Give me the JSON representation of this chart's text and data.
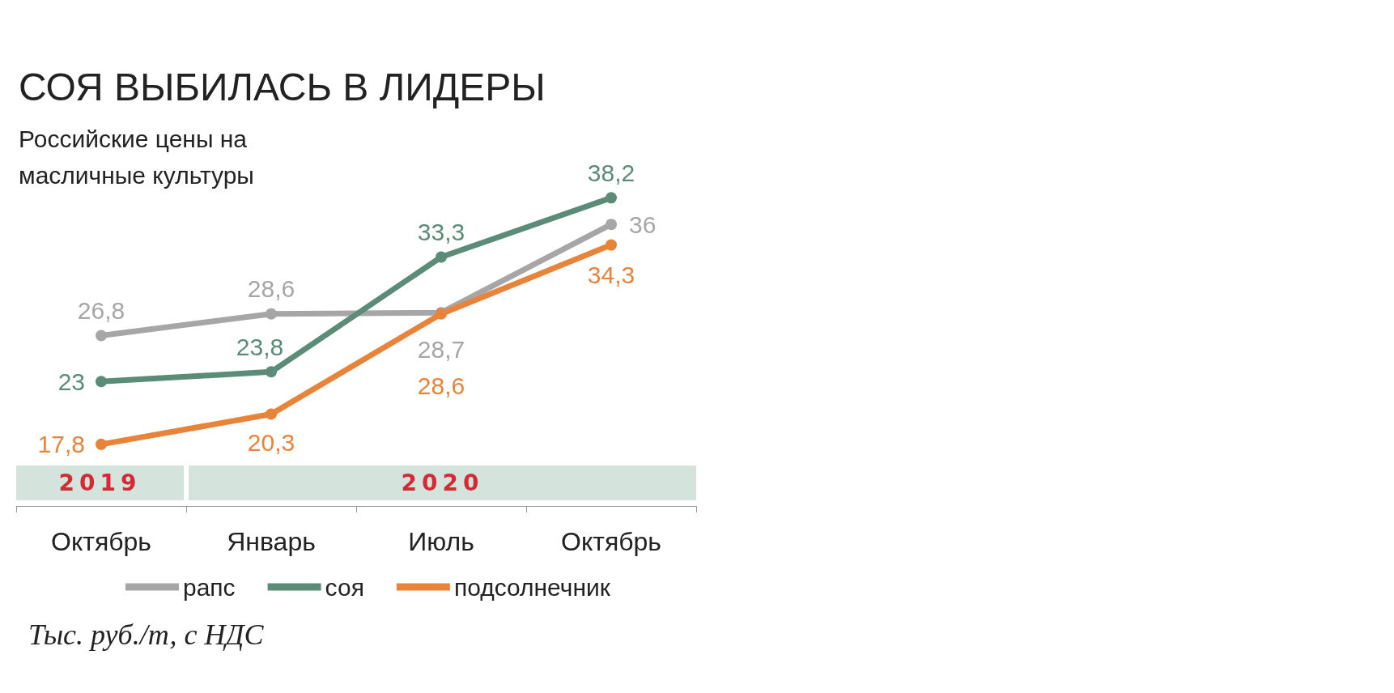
{
  "chart_data": {
    "type": "line",
    "title": "СОЯ ВЫБИЛАСЬ В ЛИДЕРЫ",
    "subtitle": "Российские цены на масличные культуры",
    "categories": [
      "Октябрь",
      "Январь",
      "Июль",
      "Октябрь"
    ],
    "annotations": [
      "2019",
      "2020",
      "Тыс. руб./т, с НДС"
    ],
    "series": [
      {
        "name": "рапс",
        "color": "#a6a6a6",
        "values": [
          26.8,
          28.6,
          28.7,
          36
        ],
        "value_labels": [
          "26,8",
          "28,6",
          "28,7",
          "36"
        ]
      },
      {
        "name": "соя",
        "color": "#5b8c78",
        "values": [
          23,
          23.8,
          33.3,
          38.2
        ],
        "value_labels": [
          "23",
          "23,8",
          "33,3",
          "38,2"
        ]
      },
      {
        "name": "подсолнечник",
        "color": "#e8843a",
        "values": [
          17.8,
          20.3,
          28.6,
          34.3
        ],
        "value_labels": [
          "17,8",
          "20,3",
          "28,6",
          "34,3"
        ]
      }
    ],
    "marker": "circle",
    "legend": "bottom",
    "grid": false,
    "tick_labels": "x"
  }
}
